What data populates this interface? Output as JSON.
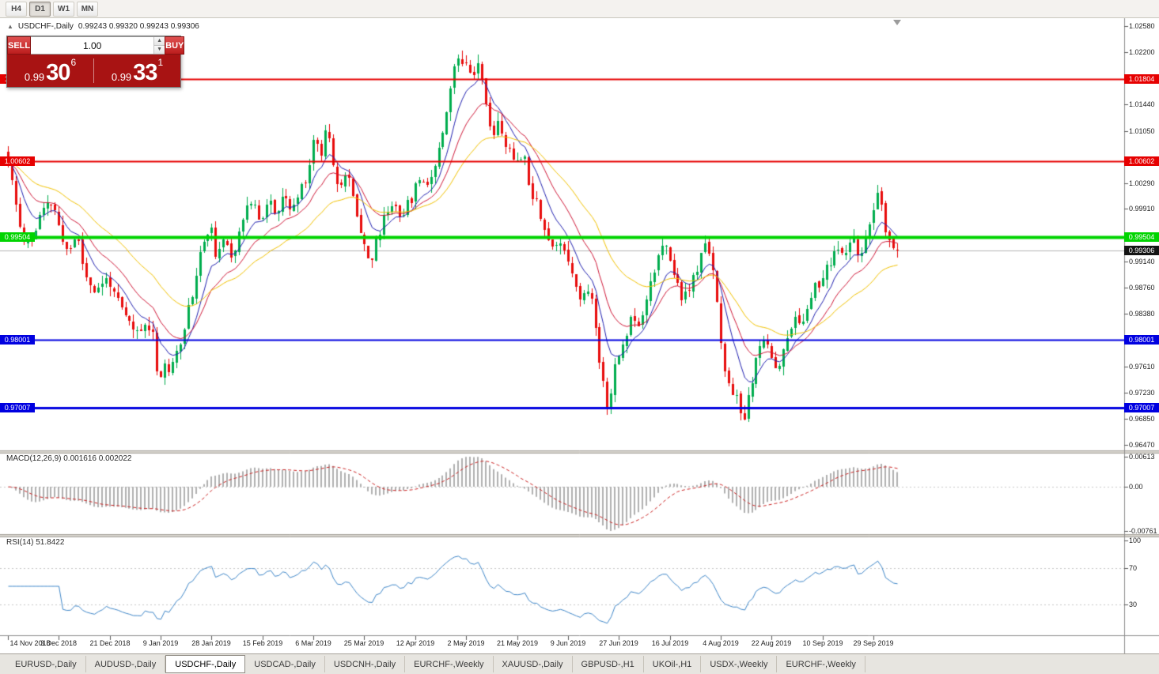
{
  "icons": {
    "collapse": "▲",
    "spin_up": "▲",
    "spin_down": "▼"
  },
  "toolbar": {
    "timeframes": [
      "H4",
      "D1",
      "W1",
      "MN"
    ],
    "active": "D1"
  },
  "chart_header": {
    "title": "USDCHF-,Daily",
    "ohlc": "0.99243 0.99320 0.99243 0.99306"
  },
  "trade_panel": {
    "sell_label": "SELL",
    "buy_label": "BUY",
    "volume": "1.00",
    "sell_price_prefix": "0.99",
    "sell_price_big": "30",
    "sell_price_sup": "6",
    "buy_price_prefix": "0.99",
    "buy_price_big": "33",
    "buy_price_sup": "1"
  },
  "tabs": [
    "EURUSD-,Daily",
    "AUDUSD-,Daily",
    "USDCHF-,Daily",
    "USDCAD-,Daily",
    "USDCNH-,Daily",
    "EURCHF-,Weekly",
    "XAUUSD-,Daily",
    "GBPUSD-,H1",
    "UKOil-,H1",
    "USDX-,Weekly",
    "EURCHF-,Weekly"
  ],
  "active_tab_index": 2,
  "chart_data": {
    "type": "candlestick",
    "symbol": "USDCHF-",
    "timeframe": "Daily",
    "ohlc": {
      "open": 0.99243,
      "high": 0.9932,
      "low": 0.99243,
      "close": 0.99306
    },
    "current_price": 0.99306,
    "current_price_label": "0.99306",
    "price_range": {
      "top": 1.0266,
      "bottom": 0.9641
    },
    "y_axis_labels": [
      "1.02580",
      "1.02200",
      "1.01440",
      "1.01050",
      "1.00290",
      "0.99910",
      "0.99140",
      "0.98760",
      "0.98380",
      "0.97610",
      "0.97230",
      "0.96850",
      "0.96470"
    ],
    "x_labels": [
      "14 Nov 2018",
      "3 Dec 2018",
      "21 Dec 2018",
      "9 Jan 2019",
      "28 Jan 2019",
      "15 Feb 2019",
      "6 Mar 2019",
      "25 Mar 2019",
      "12 Apr 2019",
      "2 May 2019",
      "21 May 2019",
      "9 Jun 2019",
      "27 Jun 2019",
      "16 Jul 2019",
      "4 Aug 2019",
      "22 Aug 2019",
      "10 Sep 2019",
      "29 Sep 2019"
    ],
    "levels": [
      {
        "price": 1.01804,
        "label": "1.01804",
        "color": "#e60000",
        "width": 2
      },
      {
        "price": 1.00602,
        "label": "1.00602",
        "color": "#e60000",
        "width": 2
      },
      {
        "price": 0.99504,
        "label": "0.99504",
        "color": "#00d400",
        "width": 4
      },
      {
        "price": 0.98001,
        "label": "0.98001",
        "color": "#0000e0",
        "width": 2
      },
      {
        "price": 0.97007,
        "label": "0.97007",
        "color": "#0000e0",
        "width": 3
      }
    ],
    "colors": {
      "bull": "#00ad4e",
      "bear": "#e80c0c",
      "bid_line": "#b4b4b4"
    },
    "moving_averages": [
      {
        "period": 8,
        "color": "#2020b0"
      },
      {
        "period": 16,
        "color": "#d01838"
      },
      {
        "period": 34,
        "color": "#f2c200"
      }
    ],
    "macd": {
      "label": "MACD(12,26,9)",
      "values": "0.001616 0.002022",
      "scale_top": "0.00613",
      "scale_zero": "0.00",
      "scale_bottom": "-0.00761",
      "histogram_color": "#b0b0b0",
      "signal_color": "#cc2222"
    },
    "rsi": {
      "label": "RSI(14)",
      "value": "51.8422",
      "levels": [
        "100",
        "70",
        "30"
      ],
      "line_color": "#3f87c9"
    },
    "seed": 11,
    "bar_count": 228,
    "anchors": [
      [
        0,
        1.0075
      ],
      [
        2,
        1.001
      ],
      [
        4,
        0.9952
      ],
      [
        6,
        0.994
      ],
      [
        9,
        0.9986
      ],
      [
        12,
        1.0002
      ],
      [
        14,
        0.995
      ],
      [
        16,
        0.9928
      ],
      [
        18,
        0.9956
      ],
      [
        20,
        0.9898
      ],
      [
        23,
        0.9868
      ],
      [
        26,
        0.9893
      ],
      [
        28,
        0.9858
      ],
      [
        31,
        0.9828
      ],
      [
        34,
        0.9806
      ],
      [
        36,
        0.9828
      ],
      [
        38,
        0.9802
      ],
      [
        39,
        0.9722
      ],
      [
        40,
        0.9772
      ],
      [
        42,
        0.9748
      ],
      [
        44,
        0.9792
      ],
      [
        46,
        0.9832
      ],
      [
        48,
        0.9882
      ],
      [
        50,
        0.9938
      ],
      [
        52,
        0.9968
      ],
      [
        54,
        0.9916
      ],
      [
        56,
        0.9946
      ],
      [
        58,
        0.9922
      ],
      [
        60,
        0.9976
      ],
      [
        62,
        1.0001
      ],
      [
        65,
        0.9978
      ],
      [
        67,
        1.0006
      ],
      [
        69,
        0.9981
      ],
      [
        71,
        1.0009
      ],
      [
        73,
        0.9986
      ],
      [
        75,
        1.0016
      ],
      [
        77,
        1.0046
      ],
      [
        78,
        1.0072
      ],
      [
        79,
        1.0108
      ],
      [
        80,
        1.0062
      ],
      [
        82,
        1.0119
      ],
      [
        83,
        1.0076
      ],
      [
        85,
        1.0022
      ],
      [
        87,
        1.0043
      ],
      [
        89,
        0.9996
      ],
      [
        91,
        0.9953
      ],
      [
        93,
        0.9908
      ],
      [
        95,
        0.9951
      ],
      [
        97,
        0.9986
      ],
      [
        99,
        1.0001
      ],
      [
        101,
        0.9983
      ],
      [
        103,
        1.0001
      ],
      [
        104,
        1.0016
      ],
      [
        106,
        1.0041
      ],
      [
        108,
        1.0026
      ],
      [
        110,
        1.0071
      ],
      [
        112,
        1.0121
      ],
      [
        114,
        1.0186
      ],
      [
        116,
        1.0221
      ],
      [
        117,
        1.0196
      ],
      [
        118,
        1.0226
      ],
      [
        119,
        1.0171
      ],
      [
        120,
        1.0196
      ],
      [
        121,
        1.0221
      ],
      [
        122,
        1.0151
      ],
      [
        124,
        1.0101
      ],
      [
        126,
        1.0116
      ],
      [
        128,
        1.0076
      ],
      [
        130,
        1.0061
      ],
      [
        132,
        1.0076
      ],
      [
        134,
        1.0021
      ],
      [
        136,
        0.9996
      ],
      [
        138,
        0.9951
      ],
      [
        140,
        0.9931
      ],
      [
        142,
        0.9946
      ],
      [
        143,
        0.9926
      ],
      [
        145,
        0.9891
      ],
      [
        147,
        0.9856
      ],
      [
        149,
        0.9881
      ],
      [
        151,
        0.9791
      ],
      [
        153,
        0.9721
      ],
      [
        154,
        0.9696
      ],
      [
        155,
        0.9751
      ],
      [
        156,
        0.9766
      ],
      [
        158,
        0.9801
      ],
      [
        160,
        0.9841
      ],
      [
        162,
        0.9821
      ],
      [
        164,
        0.9881
      ],
      [
        166,
        0.9911
      ],
      [
        168,
        0.9941
      ],
      [
        169,
        0.9921
      ],
      [
        171,
        0.9891
      ],
      [
        173,
        0.9856
      ],
      [
        175,
        0.9881
      ],
      [
        177,
        0.9911
      ],
      [
        179,
        0.9946
      ],
      [
        181,
        0.9891
      ],
      [
        183,
        0.9761
      ],
      [
        185,
        0.9716
      ],
      [
        186,
        0.9736
      ],
      [
        188,
        0.9668
      ],
      [
        190,
        0.9731
      ],
      [
        192,
        0.9776
      ],
      [
        194,
        0.9806
      ],
      [
        195,
        0.9791
      ],
      [
        197,
        0.9746
      ],
      [
        199,
        0.9801
      ],
      [
        201,
        0.9831
      ],
      [
        203,
        0.9816
      ],
      [
        205,
        0.9866
      ],
      [
        208,
        0.9886
      ],
      [
        210,
        0.9906
      ],
      [
        212,
        0.9936
      ],
      [
        214,
        0.9916
      ],
      [
        216,
        0.9946
      ],
      [
        218,
        0.9926
      ],
      [
        220,
        0.9946
      ],
      [
        222,
        1.0006
      ],
      [
        223,
        1.0022
      ],
      [
        224,
        0.9956
      ],
      [
        226,
        0.9946
      ],
      [
        227,
        0.99306
      ]
    ]
  }
}
